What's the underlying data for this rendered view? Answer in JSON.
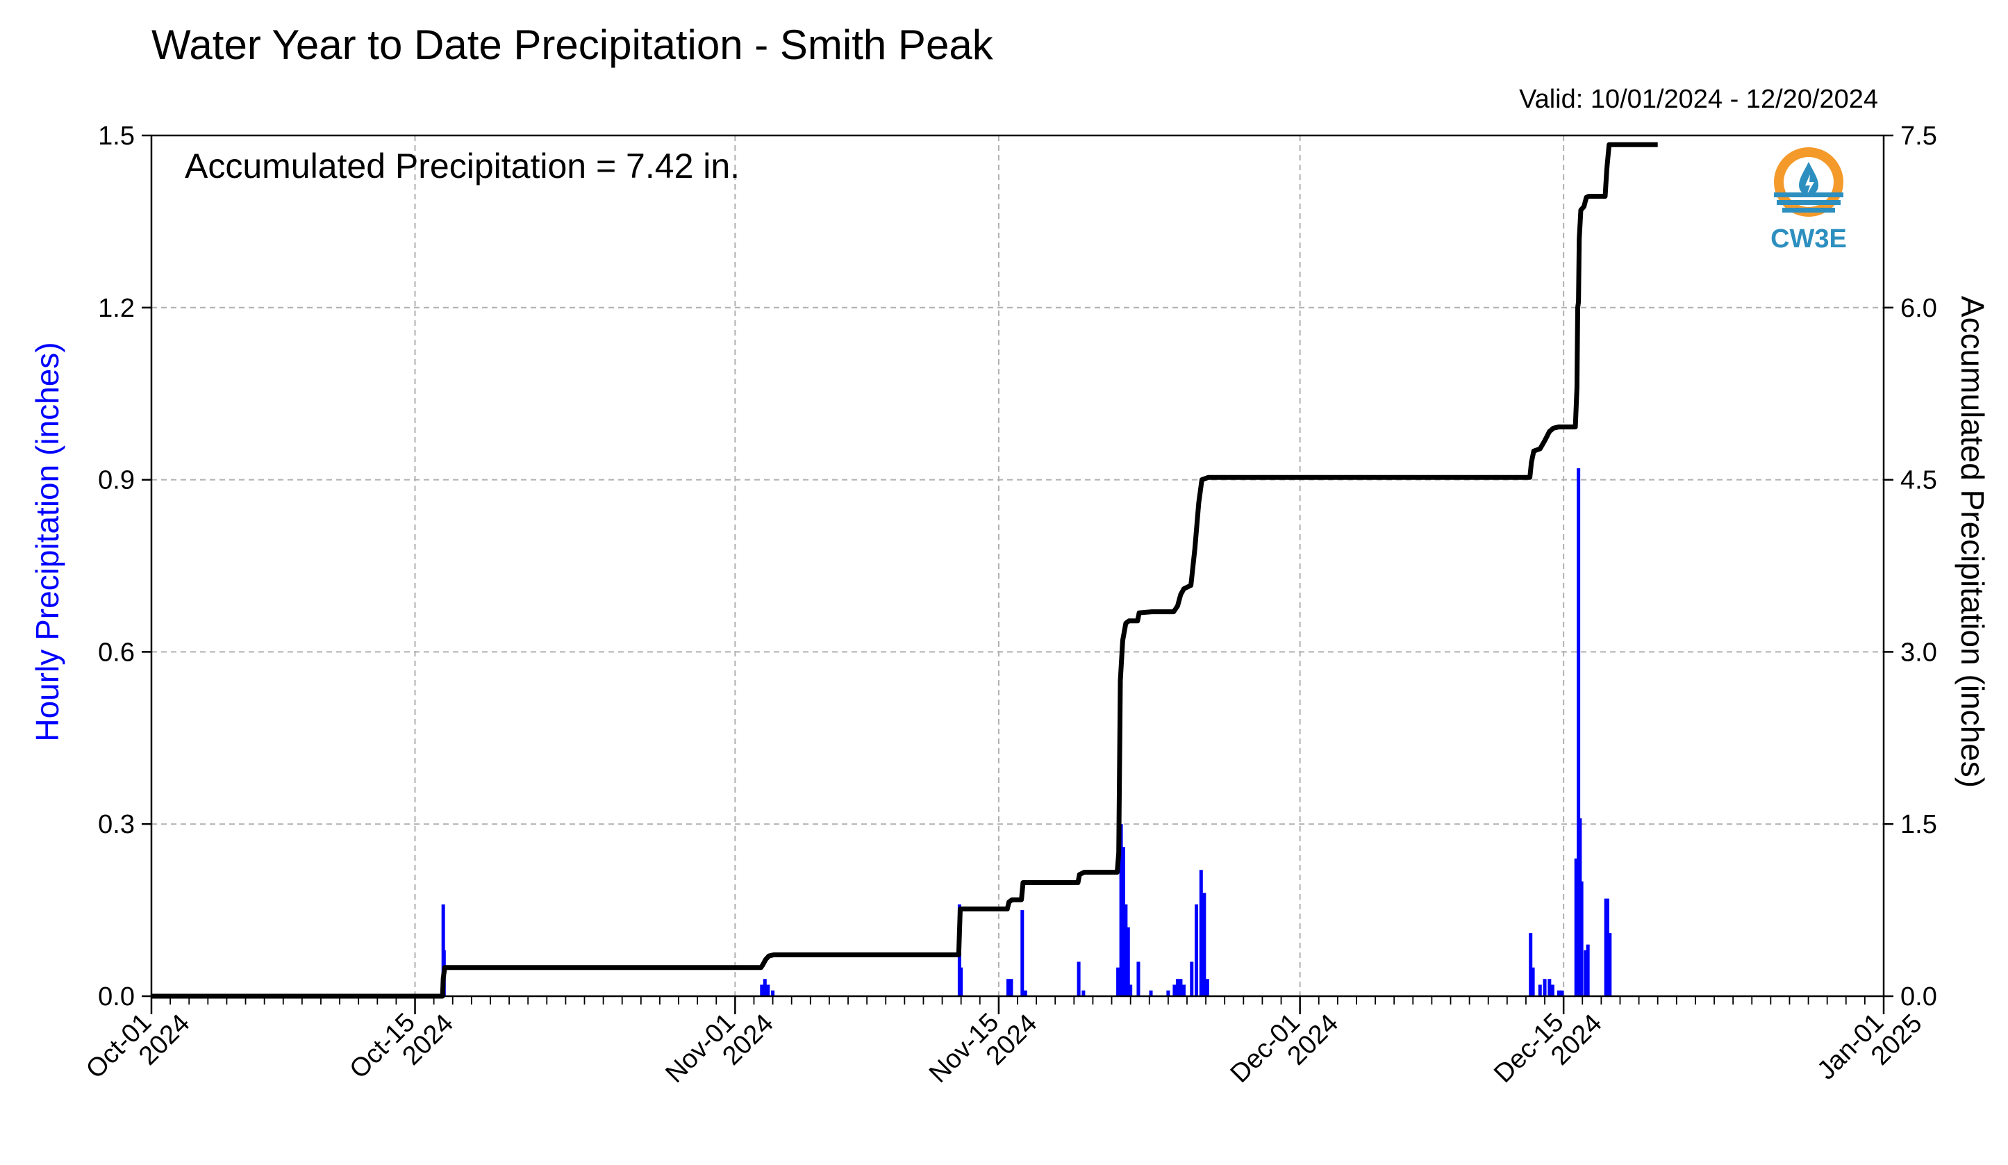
{
  "chart_data": {
    "type": "bar+line",
    "title": "Water Year to Date Precipitation - Smith Peak",
    "subtitle": "Valid: 10/01/2024 - 12/20/2024",
    "annotation": "Accumulated Precipitation = 7.42 in.",
    "logo_text": "CW3E",
    "ylabel_left": "Hourly Precipitation (inches)",
    "ylabel_right": "Accumulated Precipitation (inches)",
    "ylim_left": [
      0,
      1.5
    ],
    "ylim_right": [
      0,
      7.5
    ],
    "yticks_left": [
      "0.0",
      "0.3",
      "0.6",
      "0.9",
      "1.2",
      "1.5"
    ],
    "yticks_right": [
      "0.0",
      "1.5",
      "3.0",
      "4.5",
      "6.0",
      "7.5"
    ],
    "xlim": [
      "2024-10-01",
      "2025-01-01"
    ],
    "x_major_ticks": [
      {
        "date": "2024-10-01",
        "line1": "Oct-01",
        "line2": "2024"
      },
      {
        "date": "2024-10-15",
        "line1": "Oct-15",
        "line2": "2024"
      },
      {
        "date": "2024-11-01",
        "line1": "Nov-01",
        "line2": "2024"
      },
      {
        "date": "2024-11-15",
        "line1": "Nov-15",
        "line2": "2024"
      },
      {
        "date": "2024-12-01",
        "line1": "Dec-01",
        "line2": "2024"
      },
      {
        "date": "2024-12-15",
        "line1": "Dec-15",
        "line2": "2024"
      },
      {
        "date": "2025-01-01",
        "line1": "Jan-01",
        "line2": "2025"
      }
    ],
    "grid": true,
    "colors": {
      "hourly": "#0000ff",
      "accumulated": "#000000",
      "grid": "#b0b0b0",
      "logo_orange": "#f39a2b",
      "logo_blue": "#2d8fbf"
    },
    "series": [
      {
        "name": "Hourly Precipitation (inches)",
        "axis": "left",
        "type": "bar",
        "points": [
          [
            "2024-10-16T12:00",
            0.16
          ],
          [
            "2024-10-16T13:00",
            0.08
          ],
          [
            "2024-11-02T10:00",
            0.02
          ],
          [
            "2024-11-02T14:00",
            0.03
          ],
          [
            "2024-11-02T18:00",
            0.02
          ],
          [
            "2024-11-03T00:00",
            0.01
          ],
          [
            "2024-11-12T22:00",
            0.16
          ],
          [
            "2024-11-13T00:00",
            0.05
          ],
          [
            "2024-11-15T12:00",
            0.03
          ],
          [
            "2024-11-15T16:00",
            0.03
          ],
          [
            "2024-11-16T06:00",
            0.15
          ],
          [
            "2024-11-16T10:00",
            0.01
          ],
          [
            "2024-11-19T06:00",
            0.06
          ],
          [
            "2024-11-19T12:00",
            0.01
          ],
          [
            "2024-11-21T08:00",
            0.05
          ],
          [
            "2024-11-21T12:00",
            0.3
          ],
          [
            "2024-11-21T15:00",
            0.26
          ],
          [
            "2024-11-21T18:00",
            0.16
          ],
          [
            "2024-11-21T21:00",
            0.12
          ],
          [
            "2024-11-22T00:00",
            0.02
          ],
          [
            "2024-11-22T10:00",
            0.06
          ],
          [
            "2024-11-23T02:00",
            0.01
          ],
          [
            "2024-11-24T00:00",
            0.01
          ],
          [
            "2024-11-24T08:00",
            0.02
          ],
          [
            "2024-11-24T12:00",
            0.03
          ],
          [
            "2024-11-24T16:00",
            0.03
          ],
          [
            "2024-11-24T20:00",
            0.02
          ],
          [
            "2024-11-25T06:00",
            0.06
          ],
          [
            "2024-11-25T12:00",
            0.16
          ],
          [
            "2024-11-25T18:00",
            0.22
          ],
          [
            "2024-11-25T22:00",
            0.18
          ],
          [
            "2024-11-26T02:00",
            0.03
          ],
          [
            "2024-12-13T06:00",
            0.11
          ],
          [
            "2024-12-13T09:00",
            0.05
          ],
          [
            "2024-12-13T18:00",
            0.02
          ],
          [
            "2024-12-14T00:00",
            0.03
          ],
          [
            "2024-12-14T06:00",
            0.03
          ],
          [
            "2024-12-14T10:00",
            0.02
          ],
          [
            "2024-12-14T18:00",
            0.01
          ],
          [
            "2024-12-14T22:00",
            0.01
          ],
          [
            "2024-12-15T16:00",
            0.24
          ],
          [
            "2024-12-15T19:00",
            0.92
          ],
          [
            "2024-12-15T21:00",
            0.31
          ],
          [
            "2024-12-15T23:00",
            0.2
          ],
          [
            "2024-12-16T04:00",
            0.08
          ],
          [
            "2024-12-16T07:00",
            0.09
          ],
          [
            "2024-12-17T06:00",
            0.17
          ],
          [
            "2024-12-17T08:00",
            0.17
          ],
          [
            "2024-12-17T11:00",
            0.11
          ]
        ]
      },
      {
        "name": "Accumulated Precipitation (inches)",
        "axis": "right",
        "type": "line",
        "points": [
          [
            "2024-10-01T00:00",
            0.0
          ],
          [
            "2024-10-16T11:00",
            0.0
          ],
          [
            "2024-10-16T12:00",
            0.16
          ],
          [
            "2024-10-16T14:00",
            0.25
          ],
          [
            "2024-11-02T09:00",
            0.25
          ],
          [
            "2024-11-02T11:00",
            0.27
          ],
          [
            "2024-11-02T15:00",
            0.32
          ],
          [
            "2024-11-02T19:00",
            0.35
          ],
          [
            "2024-11-03T01:00",
            0.36
          ],
          [
            "2024-11-12T21:00",
            0.36
          ],
          [
            "2024-11-12T23:00",
            0.76
          ],
          [
            "2024-11-13T02:00",
            0.76
          ],
          [
            "2024-11-15T11:00",
            0.76
          ],
          [
            "2024-11-15T13:00",
            0.82
          ],
          [
            "2024-11-15T17:00",
            0.84
          ],
          [
            "2024-11-16T05:00",
            0.84
          ],
          [
            "2024-11-16T07:00",
            0.99
          ],
          [
            "2024-11-16T11:00",
            0.99
          ],
          [
            "2024-11-19T05:00",
            0.99
          ],
          [
            "2024-11-19T07:00",
            1.06
          ],
          [
            "2024-11-19T13:00",
            1.08
          ],
          [
            "2024-11-21T07:00",
            1.08
          ],
          [
            "2024-11-21T09:00",
            1.25
          ],
          [
            "2024-11-21T11:00",
            2.75
          ],
          [
            "2024-11-21T14:00",
            3.1
          ],
          [
            "2024-11-21T18:00",
            3.25
          ],
          [
            "2024-11-21T22:00",
            3.27
          ],
          [
            "2024-11-22T09:00",
            3.27
          ],
          [
            "2024-11-22T11:00",
            3.34
          ],
          [
            "2024-11-23T03:00",
            3.35
          ],
          [
            "2024-11-24T07:00",
            3.35
          ],
          [
            "2024-11-24T12:00",
            3.4
          ],
          [
            "2024-11-24T16:00",
            3.5
          ],
          [
            "2024-11-24T20:00",
            3.55
          ],
          [
            "2024-11-25T05:00",
            3.58
          ],
          [
            "2024-11-25T10:00",
            3.9
          ],
          [
            "2024-11-25T15:00",
            4.3
          ],
          [
            "2024-11-25T19:00",
            4.5
          ],
          [
            "2024-11-26T03:00",
            4.52
          ],
          [
            "2024-12-13T05:00",
            4.52
          ],
          [
            "2024-12-13T07:00",
            4.65
          ],
          [
            "2024-12-13T10:00",
            4.75
          ],
          [
            "2024-12-13T18:00",
            4.77
          ],
          [
            "2024-12-14T00:00",
            4.84
          ],
          [
            "2024-12-14T06:00",
            4.92
          ],
          [
            "2024-12-14T11:00",
            4.95
          ],
          [
            "2024-12-14T18:00",
            4.96
          ],
          [
            "2024-12-14T23:00",
            4.96
          ],
          [
            "2024-12-15T15:00",
            4.96
          ],
          [
            "2024-12-15T17:00",
            5.3
          ],
          [
            "2024-12-15T18:00",
            6.0
          ],
          [
            "2024-12-15T19:00",
            6.05
          ],
          [
            "2024-12-15T20:00",
            6.6
          ],
          [
            "2024-12-15T22:00",
            6.85
          ],
          [
            "2024-12-16T02:00",
            6.88
          ],
          [
            "2024-12-16T05:00",
            6.96
          ],
          [
            "2024-12-16T08:00",
            6.97
          ],
          [
            "2024-12-17T05:00",
            6.97
          ],
          [
            "2024-12-17T07:00",
            7.2
          ],
          [
            "2024-12-17T10:00",
            7.42
          ],
          [
            "2024-12-20T00:00",
            7.42
          ]
        ]
      }
    ]
  }
}
